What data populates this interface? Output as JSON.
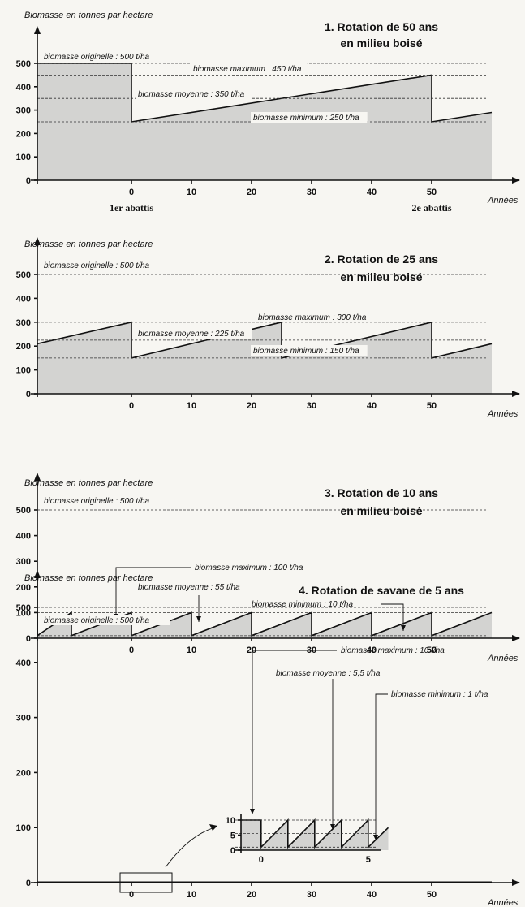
{
  "figure": {
    "unit_x": "Années",
    "x_ticks": [
      0,
      10,
      20,
      30,
      40,
      50
    ],
    "y_ticks": [
      0,
      100,
      200,
      300,
      400,
      500
    ]
  },
  "chart_data": [
    {
      "type": "area",
      "title_lines": [
        "1. Rotation de 50 ans",
        "en milieu boisé"
      ],
      "ylabel": "Biomasse en tonnes par hectare",
      "xlabel": "Années",
      "xlim": [
        -22,
        60
      ],
      "ylim": [
        0,
        500
      ],
      "series": [
        {
          "x": [
            -22,
            0,
            0,
            50,
            50,
            60
          ],
          "y": [
            500,
            500,
            250,
            450,
            250,
            290
          ]
        }
      ],
      "references": [
        {
          "value": 500,
          "label": "biomasse originelle : 500 t/ha"
        },
        {
          "value": 450,
          "label": "biomasse maximum : 450 t/ha"
        },
        {
          "value": 350,
          "label": "biomasse moyenne : 350 t/ha"
        },
        {
          "value": 250,
          "label": "biomasse minimum : 250 t/ha"
        }
      ],
      "events": [
        {
          "x": 0,
          "label": "1er abattis"
        },
        {
          "x": 50,
          "label": "2e abattis"
        }
      ]
    },
    {
      "type": "area",
      "title_lines": [
        "2. Rotation de 25 ans",
        "en milieu boisé"
      ],
      "ylabel": "Biomasse en tonnes par hectare",
      "xlabel": "Années",
      "xlim": [
        -22,
        60
      ],
      "ylim": [
        0,
        500
      ],
      "series": [
        {
          "x": [
            -22,
            0,
            0,
            25,
            25,
            50,
            50,
            60
          ],
          "y": [
            210,
            300,
            150,
            300,
            150,
            300,
            150,
            210
          ]
        }
      ],
      "references": [
        {
          "value": 500,
          "label": "biomasse originelle : 500 t/ha"
        },
        {
          "value": 300,
          "label": "biomasse maximum : 300 t/ha"
        },
        {
          "value": 225,
          "label": "biomasse moyenne : 225 t/ha"
        },
        {
          "value": 150,
          "label": "biomasse minimum : 150 t/ha"
        }
      ]
    },
    {
      "type": "area",
      "title_lines": [
        "3. Rotation de 10 ans",
        "en milieu boisé"
      ],
      "ylabel": "Biomasse en tonnes par hectare",
      "xlabel": "Années",
      "xlim": [
        -22,
        60
      ],
      "ylim": [
        0,
        500
      ],
      "series": [
        {
          "x": [
            -22,
            -20,
            -20,
            -10,
            -10,
            0,
            0,
            10,
            10,
            20,
            20,
            30,
            30,
            40,
            40,
            50,
            50,
            60
          ],
          "y": [
            28,
            100,
            10,
            100,
            10,
            100,
            10,
            100,
            10,
            100,
            10,
            100,
            10,
            100,
            10,
            100,
            10,
            100
          ]
        }
      ],
      "references": [
        {
          "value": 500,
          "label": "biomasse originelle : 500 t/ha"
        },
        {
          "value": 100,
          "label": "biomasse maximum : 100 t/ha"
        },
        {
          "value": 55,
          "label": "biomasse moyenne : 55 t/ha"
        },
        {
          "value": 10,
          "label": "biomasse minimum : 10 t/ha"
        }
      ]
    },
    {
      "type": "area",
      "title_lines": [
        "4. Rotation de savane de 5 ans"
      ],
      "ylabel": "Biomasse en tonnes par hectare",
      "xlabel": "Années",
      "xlim": [
        -22,
        60
      ],
      "ylim": [
        0,
        500
      ],
      "series": [
        {
          "x": [
            -22,
            60
          ],
          "y": [
            1,
            1
          ]
        }
      ],
      "references": [
        {
          "value": 500,
          "label": "biomasse originelle : 500 t/ha"
        }
      ],
      "inset": {
        "x_ticks": [
          0,
          5
        ],
        "y_ticks": [
          0,
          5,
          10
        ],
        "xlim": [
          -1.5,
          9.5
        ],
        "ylim": [
          0,
          10
        ],
        "series": [
          {
            "x": [
              -1.5,
              0,
              0,
              2,
              2,
              4,
              4,
              6,
              6,
              8,
              8,
              9.5
            ],
            "y": [
              10,
              10,
              1,
              10,
              1,
              10,
              1,
              10,
              1,
              10,
              1,
              7.5
            ]
          }
        ],
        "references": [
          {
            "value": 10,
            "label": "biomasse maximum : 10 t/ha"
          },
          {
            "value": 5.5,
            "label": "biomasse moyenne : 5,5 t/ha"
          },
          {
            "value": 1,
            "label": "biomasse minimum : 1 t/ha"
          }
        ]
      }
    }
  ]
}
